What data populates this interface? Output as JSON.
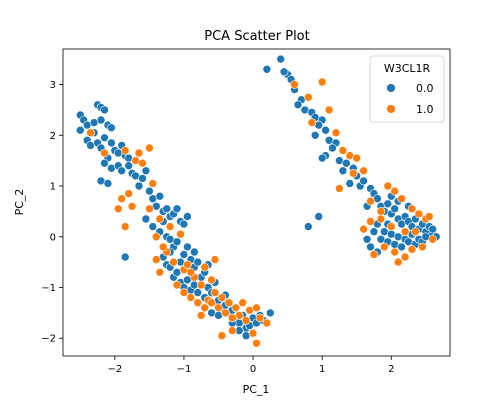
{
  "chart_data": {
    "type": "scatter",
    "title": "PCA Scatter Plot",
    "xlabel": "PC_1",
    "ylabel": "PC_2",
    "xlim": [
      -2.75,
      2.85
    ],
    "ylim": [
      -2.35,
      3.7
    ],
    "xticks": [
      -2,
      -1,
      0,
      1,
      2
    ],
    "yticks": [
      -2,
      -1,
      0,
      1,
      2,
      3
    ],
    "grid": false,
    "legend": {
      "title": "W3CL1R",
      "placement": "top-right",
      "entries": [
        {
          "label": "0.0",
          "color": "#1f77b4"
        },
        {
          "label": "1.0",
          "color": "#ff7f0e"
        }
      ]
    },
    "series": [
      {
        "name": "0.0",
        "color": "#1f77b4",
        "points": [
          [
            -2.5,
            2.4
          ],
          [
            -2.45,
            2.3
          ],
          [
            -2.5,
            2.1
          ],
          [
            -2.4,
            2.2
          ],
          [
            -2.3,
            2.25
          ],
          [
            -2.25,
            2.6
          ],
          [
            -2.2,
            2.55
          ],
          [
            -2.15,
            2.5
          ],
          [
            -2.2,
            2.3
          ],
          [
            -2.1,
            2.2
          ],
          [
            -2.05,
            2.15
          ],
          [
            -2.3,
            2.05
          ],
          [
            -2.4,
            1.9
          ],
          [
            -2.35,
            1.8
          ],
          [
            -2.25,
            1.85
          ],
          [
            -2.2,
            1.75
          ],
          [
            -2.15,
            1.95
          ],
          [
            -2.05,
            1.85
          ],
          [
            -2.0,
            1.7
          ],
          [
            -1.95,
            1.65
          ],
          [
            -1.9,
            1.8
          ],
          [
            -1.85,
            1.6
          ],
          [
            -1.8,
            1.55
          ],
          [
            -2.1,
            1.55
          ],
          [
            -2.15,
            1.45
          ],
          [
            -2.05,
            1.35
          ],
          [
            -1.95,
            1.4
          ],
          [
            -1.9,
            1.3
          ],
          [
            -1.8,
            1.4
          ],
          [
            -1.75,
            1.25
          ],
          [
            -1.7,
            1.2
          ],
          [
            -1.6,
            1.15
          ],
          [
            -1.55,
            1.3
          ],
          [
            -2.2,
            1.1
          ],
          [
            -2.1,
            1.05
          ],
          [
            -1.65,
            1.0
          ],
          [
            -1.5,
            0.9
          ],
          [
            -1.45,
            0.75
          ],
          [
            -1.4,
            0.6
          ],
          [
            -1.35,
            0.8
          ],
          [
            -1.3,
            0.5
          ],
          [
            -1.25,
            0.55
          ],
          [
            -1.2,
            0.4
          ],
          [
            -1.15,
            0.45
          ],
          [
            -1.1,
            0.55
          ],
          [
            -1.05,
            0.3
          ],
          [
            -1.0,
            0.25
          ],
          [
            -0.95,
            0.4
          ],
          [
            -1.45,
            0.2
          ],
          [
            -1.35,
            0.1
          ],
          [
            -1.3,
            0.3
          ],
          [
            -1.25,
            0.0
          ],
          [
            -1.2,
            -0.05
          ],
          [
            -1.15,
            -0.2
          ],
          [
            -1.1,
            -0.1
          ],
          [
            -1.0,
            -0.35
          ],
          [
            -0.95,
            -0.2
          ],
          [
            -0.9,
            -0.45
          ],
          [
            -0.85,
            -0.3
          ],
          [
            -1.3,
            -0.4
          ],
          [
            -1.25,
            -0.55
          ],
          [
            -1.2,
            -0.6
          ],
          [
            -1.15,
            -0.8
          ],
          [
            -1.1,
            -0.7
          ],
          [
            -1.05,
            -0.9
          ],
          [
            -1.0,
            -1.0
          ],
          [
            -0.95,
            -0.85
          ],
          [
            -0.9,
            -1.05
          ],
          [
            -0.85,
            -0.95
          ],
          [
            -0.8,
            -1.1
          ],
          [
            -0.75,
            -0.8
          ],
          [
            -0.7,
            -1.2
          ],
          [
            -0.65,
            -1.0
          ],
          [
            -0.6,
            -1.1
          ],
          [
            -0.55,
            -1.3
          ],
          [
            -0.5,
            -1.25
          ],
          [
            -0.45,
            -1.4
          ],
          [
            -0.4,
            -1.35
          ],
          [
            -0.35,
            -1.5
          ],
          [
            -0.3,
            -1.45
          ],
          [
            -0.25,
            -1.6
          ],
          [
            -0.2,
            -1.7
          ],
          [
            -0.15,
            -1.55
          ],
          [
            -0.1,
            -1.8
          ],
          [
            -0.05,
            -1.75
          ],
          [
            0.0,
            -1.6
          ],
          [
            0.05,
            -1.7
          ],
          [
            0.1,
            -1.55
          ],
          [
            0.15,
            -1.65
          ],
          [
            -0.85,
            -0.6
          ],
          [
            -0.8,
            -0.5
          ],
          [
            -0.7,
            -0.7
          ],
          [
            -0.65,
            -0.55
          ],
          [
            -1.2,
            -0.3
          ],
          [
            -1.05,
            -0.5
          ],
          [
            -1.85,
            -0.4
          ],
          [
            -1.55,
            0.35
          ],
          [
            -0.6,
            -1.5
          ],
          [
            -0.5,
            -1.55
          ],
          [
            -0.3,
            -1.7
          ],
          [
            -0.2,
            -1.85
          ],
          [
            -0.1,
            -1.95
          ],
          [
            0.25,
            -1.5
          ],
          [
            -0.4,
            -1.15
          ],
          [
            -0.55,
            -0.9
          ],
          [
            0.4,
            3.5
          ],
          [
            0.2,
            3.3
          ],
          [
            0.5,
            3.2
          ],
          [
            0.55,
            3.1
          ],
          [
            0.6,
            2.9
          ],
          [
            0.45,
            3.25
          ],
          [
            0.7,
            2.7
          ],
          [
            0.65,
            2.6
          ],
          [
            0.75,
            2.5
          ],
          [
            0.85,
            2.45
          ],
          [
            0.9,
            2.35
          ],
          [
            1.0,
            2.3
          ],
          [
            0.95,
            2.2
          ],
          [
            1.05,
            2.1
          ],
          [
            0.9,
            2.0
          ],
          [
            1.1,
            1.9
          ],
          [
            1.2,
            1.85
          ],
          [
            1.15,
            1.75
          ],
          [
            1.05,
            1.6
          ],
          [
            1.0,
            1.55
          ],
          [
            1.25,
            1.5
          ],
          [
            1.35,
            1.45
          ],
          [
            1.3,
            1.3
          ],
          [
            1.45,
            1.35
          ],
          [
            1.5,
            1.2
          ],
          [
            1.4,
            1.05
          ],
          [
            1.55,
            1.0
          ],
          [
            1.6,
            1.1
          ],
          [
            0.95,
            0.4
          ],
          [
            0.8,
            0.2
          ],
          [
            1.65,
            0.6
          ],
          [
            1.7,
            0.95
          ],
          [
            1.75,
            0.85
          ],
          [
            1.8,
            0.75
          ],
          [
            1.85,
            0.6
          ],
          [
            1.9,
            0.5
          ],
          [
            1.95,
            0.65
          ],
          [
            2.0,
            0.45
          ],
          [
            2.05,
            0.55
          ],
          [
            2.1,
            0.35
          ],
          [
            2.15,
            0.25
          ],
          [
            2.2,
            0.4
          ],
          [
            2.25,
            0.3
          ],
          [
            2.3,
            0.2
          ],
          [
            2.35,
            0.35
          ],
          [
            2.4,
            0.15
          ],
          [
            2.45,
            0.25
          ],
          [
            2.5,
            0.1
          ],
          [
            2.55,
            0.2
          ],
          [
            2.6,
            0.05
          ],
          [
            2.65,
            0.0
          ],
          [
            1.75,
            0.1
          ],
          [
            1.8,
            0.25
          ],
          [
            1.85,
            -0.05
          ],
          [
            1.9,
            0.1
          ],
          [
            1.95,
            -0.1
          ],
          [
            2.0,
            0.05
          ],
          [
            2.05,
            -0.15
          ],
          [
            2.1,
            0.0
          ],
          [
            2.15,
            -0.2
          ],
          [
            2.2,
            -0.05
          ],
          [
            2.25,
            -0.1
          ],
          [
            2.3,
            0.05
          ],
          [
            2.35,
            -0.15
          ],
          [
            2.4,
            -0.05
          ],
          [
            2.45,
            -0.1
          ],
          [
            2.5,
            0.0
          ],
          [
            1.7,
            -0.2
          ],
          [
            1.8,
            -0.3
          ],
          [
            1.65,
            -0.05
          ],
          [
            2.6,
            0.15
          ],
          [
            2.0,
            0.8
          ],
          [
            2.1,
            0.7
          ],
          [
            1.95,
            0.25
          ],
          [
            2.25,
            0.6
          ]
        ]
      },
      {
        "name": "1.0",
        "color": "#ff7f0e",
        "points": [
          [
            -2.35,
            2.05
          ],
          [
            -2.15,
            1.65
          ],
          [
            -1.85,
            1.7
          ],
          [
            -1.7,
            1.5
          ],
          [
            -1.6,
            1.45
          ],
          [
            -1.65,
            1.65
          ],
          [
            -1.5,
            1.75
          ],
          [
            -1.9,
            0.75
          ],
          [
            -1.95,
            0.55
          ],
          [
            -1.8,
            0.85
          ],
          [
            -1.75,
            0.6
          ],
          [
            -1.45,
            1.05
          ],
          [
            -1.5,
            0.55
          ],
          [
            -1.35,
            0.35
          ],
          [
            -1.85,
            0.2
          ],
          [
            -1.4,
            0.0
          ],
          [
            -1.2,
            0.2
          ],
          [
            -1.05,
            0.05
          ],
          [
            -1.25,
            -0.3
          ],
          [
            -1.15,
            -0.5
          ],
          [
            -1.0,
            -0.65
          ],
          [
            -0.95,
            -0.55
          ],
          [
            -0.85,
            -0.8
          ],
          [
            -0.75,
            -0.95
          ],
          [
            -0.65,
            -1.25
          ],
          [
            -0.55,
            -1.1
          ],
          [
            -0.45,
            -1.2
          ],
          [
            -0.35,
            -1.3
          ],
          [
            -0.25,
            -1.4
          ],
          [
            -0.15,
            -1.3
          ],
          [
            -0.05,
            -1.45
          ],
          [
            0.05,
            -1.4
          ],
          [
            0.1,
            -1.6
          ],
          [
            0.0,
            -1.9
          ],
          [
            0.05,
            -2.1
          ],
          [
            -0.1,
            -1.65
          ],
          [
            -0.2,
            -1.55
          ],
          [
            -0.3,
            -1.6
          ],
          [
            -0.4,
            -1.5
          ],
          [
            -0.5,
            -1.4
          ],
          [
            -0.6,
            -1.3
          ],
          [
            -0.7,
            -1.4
          ],
          [
            -0.8,
            -1.3
          ],
          [
            -0.9,
            -1.2
          ],
          [
            -1.0,
            -1.1
          ],
          [
            -1.1,
            -0.95
          ],
          [
            -0.9,
            -0.7
          ],
          [
            -0.7,
            -0.6
          ],
          [
            -0.6,
            -0.85
          ],
          [
            -0.75,
            -1.55
          ],
          [
            -0.3,
            -1.85
          ],
          [
            -0.45,
            -1.95
          ],
          [
            0.2,
            -1.7
          ],
          [
            -1.3,
            -0.2
          ],
          [
            -1.4,
            -0.45
          ],
          [
            -1.35,
            -0.7
          ],
          [
            -0.55,
            -0.45
          ],
          [
            0.6,
            3.0
          ],
          [
            0.8,
            2.75
          ],
          [
            1.0,
            3.05
          ],
          [
            1.1,
            2.5
          ],
          [
            0.85,
            2.25
          ],
          [
            1.2,
            2.05
          ],
          [
            1.3,
            1.7
          ],
          [
            1.4,
            1.6
          ],
          [
            1.5,
            1.55
          ],
          [
            1.45,
            1.25
          ],
          [
            1.6,
            1.3
          ],
          [
            1.25,
            0.95
          ],
          [
            1.7,
            0.7
          ],
          [
            1.95,
            1.0
          ],
          [
            2.05,
            0.9
          ],
          [
            2.15,
            0.75
          ],
          [
            2.3,
            0.55
          ],
          [
            2.4,
            0.45
          ],
          [
            2.5,
            0.35
          ],
          [
            2.55,
            0.4
          ],
          [
            1.85,
            0.35
          ],
          [
            1.9,
            -0.2
          ],
          [
            2.05,
            -0.3
          ],
          [
            2.2,
            -0.4
          ],
          [
            2.3,
            -0.25
          ],
          [
            2.45,
            -0.2
          ],
          [
            1.75,
            -0.35
          ],
          [
            1.7,
            0.3
          ],
          [
            2.0,
            0.2
          ],
          [
            2.2,
            0.1
          ],
          [
            2.35,
            0.1
          ],
          [
            1.6,
            0.15
          ],
          [
            2.6,
            -0.05
          ],
          [
            2.1,
            -0.5
          ],
          [
            1.85,
            0.5
          ]
        ]
      }
    ]
  }
}
